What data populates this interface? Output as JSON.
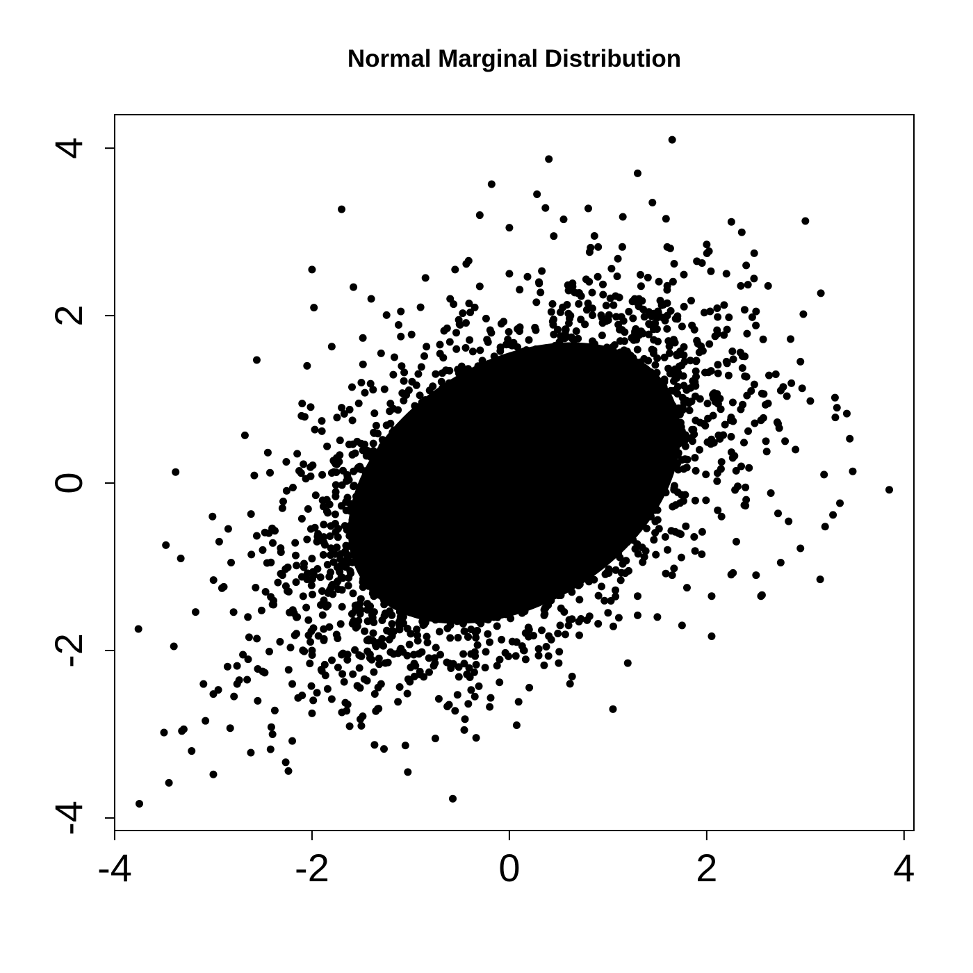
{
  "chart_data": {
    "type": "scatter",
    "title": "Normal Marginal Distribution",
    "xlabel": "",
    "ylabel": "",
    "xlim": [
      -4.0,
      4.1
    ],
    "ylim": [
      -4.15,
      4.4
    ],
    "x_ticks": [
      -4,
      -2,
      0,
      2,
      4
    ],
    "x_tick_labels": [
      "-4",
      "-2",
      "0",
      "2",
      "4"
    ],
    "y_ticks": [
      -4,
      -2,
      0,
      2,
      4
    ],
    "y_tick_labels": [
      "-4",
      "-2",
      "0",
      "2",
      "4"
    ],
    "grid": false,
    "legend": "none",
    "point_color": "#000000",
    "series": [
      {
        "points": [
          [
            -3.75,
            -3.83
          ],
          [
            -3.45,
            -3.58
          ],
          [
            -3.5,
            -2.98
          ],
          [
            -3.3,
            -2.94
          ],
          [
            -3.22,
            -3.2
          ],
          [
            -3.08,
            -2.84
          ],
          [
            -3.0,
            -3.48
          ],
          [
            -3.0,
            -2.52
          ],
          [
            -2.95,
            -2.47
          ],
          [
            -3.33,
            -0.9
          ],
          [
            -3.4,
            -1.95
          ],
          [
            -3.18,
            -1.54
          ],
          [
            -3.1,
            -2.4
          ],
          [
            -2.62,
            -3.22
          ],
          [
            -2.42,
            -3.18
          ],
          [
            -2.4,
            -3.0
          ],
          [
            -2.2,
            -3.08
          ],
          [
            -2.0,
            -2.75
          ],
          [
            -2.82,
            -0.95
          ],
          [
            -2.68,
            0.57
          ],
          [
            -2.56,
            1.47
          ],
          [
            -2.56,
            -0.63
          ],
          [
            -2.0,
            2.55
          ],
          [
            -1.7,
            3.27
          ],
          [
            -1.8,
            1.63
          ],
          [
            -1.58,
            2.34
          ],
          [
            -2.05,
            1.4
          ],
          [
            -0.75,
            -3.05
          ],
          [
            -0.55,
            -2.72
          ],
          [
            -0.45,
            -2.82
          ],
          [
            -0.35,
            -2.55
          ],
          [
            0.4,
            3.87
          ],
          [
            1.65,
            4.1
          ],
          [
            1.3,
            3.7
          ],
          [
            -0.18,
            3.57
          ],
          [
            3.0,
            3.13
          ],
          [
            2.25,
            3.12
          ],
          [
            2.4,
            2.6
          ],
          [
            3.85,
            -0.08
          ],
          [
            3.48,
            0.14
          ],
          [
            3.42,
            0.83
          ],
          [
            3.45,
            0.53
          ],
          [
            3.3,
            1.02
          ],
          [
            3.32,
            0.9
          ],
          [
            3.15,
            -1.15
          ],
          [
            3.2,
            -0.52
          ],
          [
            3.28,
            -0.38
          ],
          [
            3.35,
            -0.24
          ],
          [
            1.05,
            -2.7
          ],
          [
            1.2,
            -2.15
          ],
          [
            2.05,
            -1.83
          ],
          [
            2.55,
            -1.35
          ],
          [
            0.28,
            3.45
          ],
          [
            0.55,
            3.15
          ],
          [
            0.8,
            3.28
          ],
          [
            1.15,
            3.18
          ],
          [
            1.45,
            3.35
          ],
          [
            2.0,
            2.85
          ],
          [
            -1.4,
            2.2
          ],
          [
            -1.1,
            2.05
          ],
          [
            -0.85,
            2.45
          ],
          [
            -0.55,
            2.55
          ],
          [
            0.0,
            3.05
          ],
          [
            -0.3,
            3.2
          ],
          [
            0.45,
            2.95
          ],
          [
            0.9,
            2.82
          ],
          [
            1.1,
            2.68
          ],
          [
            1.6,
            2.82
          ],
          [
            1.9,
            2.65
          ],
          [
            2.2,
            2.5
          ],
          [
            2.5,
            2.05
          ],
          [
            2.85,
            1.72
          ],
          [
            2.95,
            1.45
          ],
          [
            3.05,
            0.98
          ],
          [
            2.7,
            1.3
          ],
          [
            2.6,
            0.5
          ],
          [
            2.9,
            0.4
          ],
          [
            2.95,
            -0.78
          ],
          [
            2.75,
            -0.95
          ],
          [
            2.5,
            -1.1
          ],
          [
            2.3,
            -0.7
          ],
          [
            2.4,
            -0.2
          ],
          [
            2.65,
            -0.12
          ],
          [
            2.05,
            -1.35
          ],
          [
            1.8,
            -1.25
          ],
          [
            1.75,
            -1.7
          ],
          [
            1.5,
            -1.6
          ],
          [
            1.3,
            -1.58
          ],
          [
            0.9,
            -1.68
          ],
          [
            0.5,
            -2.15
          ],
          [
            0.15,
            -2.0
          ],
          [
            -0.1,
            -2.38
          ],
          [
            -0.4,
            -2.32
          ],
          [
            -0.7,
            -2.05
          ],
          [
            -1.0,
            -2.2
          ],
          [
            -1.3,
            -2.4
          ],
          [
            -1.5,
            -2.9
          ],
          [
            -1.65,
            -2.72
          ],
          [
            -1.8,
            -2.58
          ],
          [
            -2.2,
            -2.4
          ],
          [
            -2.5,
            -2.25
          ],
          [
            -2.7,
            -2.05
          ],
          [
            -2.65,
            -1.6
          ],
          [
            -2.4,
            -1.45
          ],
          [
            -2.3,
            -1.1
          ],
          [
            -2.5,
            -0.8
          ],
          [
            -2.3,
            -0.3
          ],
          [
            -2.15,
            0.35
          ],
          [
            -2.1,
            0.95
          ],
          [
            -1.9,
            0.62
          ],
          [
            -1.7,
            0.9
          ],
          [
            -1.5,
            1.2
          ],
          [
            -1.3,
            1.55
          ],
          [
            -1.1,
            1.75
          ],
          [
            -0.9,
            2.1
          ],
          [
            -0.6,
            2.2
          ],
          [
            -0.3,
            2.35
          ],
          [
            0.0,
            2.5
          ],
          [
            0.3,
            2.4
          ],
          [
            0.6,
            2.3
          ],
          [
            0.95,
            2.25
          ],
          [
            1.3,
            2.15
          ],
          [
            1.6,
            2.0
          ],
          [
            1.9,
            1.7
          ],
          [
            2.2,
            1.45
          ],
          [
            2.45,
            1.1
          ],
          [
            2.55,
            0.75
          ],
          [
            2.35,
            0.2
          ],
          [
            2.15,
            -0.4
          ],
          [
            1.95,
            -0.85
          ],
          [
            1.65,
            -1.1
          ],
          [
            1.3,
            -1.35
          ],
          [
            1.0,
            -1.55
          ],
          [
            0.6,
            -1.7
          ],
          [
            0.2,
            -1.75
          ],
          [
            -0.2,
            -1.9
          ],
          [
            -0.6,
            -1.85
          ],
          [
            -1.0,
            -1.8
          ],
          [
            -1.35,
            -1.95
          ],
          [
            -1.7,
            -2.05
          ],
          [
            -2.0,
            -2.0
          ],
          [
            -2.15,
            -1.6
          ],
          [
            -2.05,
            -1.15
          ],
          [
            -1.95,
            -0.7
          ],
          [
            -1.85,
            -0.2
          ],
          [
            -1.75,
            0.3
          ]
        ]
      }
    ]
  }
}
